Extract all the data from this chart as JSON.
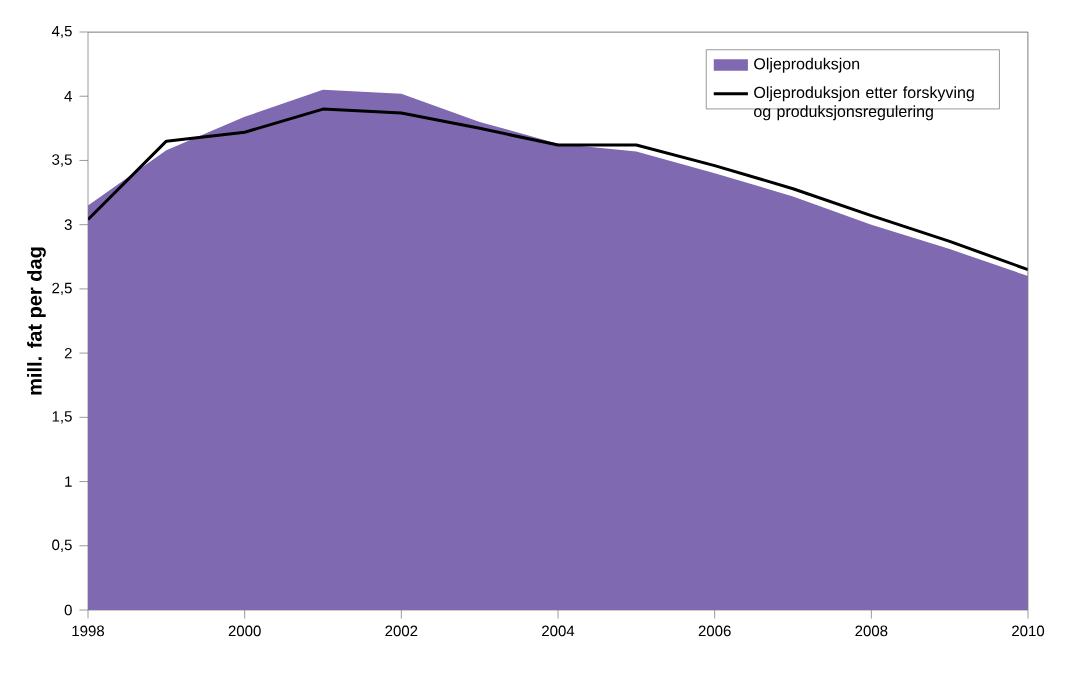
{
  "chart_data": {
    "type": "area",
    "ylabel": "mill. fat  per dag",
    "x": [
      1998,
      1999,
      2000,
      2001,
      2002,
      2003,
      2004,
      2005,
      2006,
      2007,
      2008,
      2009,
      2010
    ],
    "series": [
      {
        "name": "Oljeproduksjon",
        "color": "#7f69b0",
        "values": [
          3.15,
          3.58,
          3.84,
          4.05,
          4.02,
          3.8,
          3.63,
          3.57,
          3.4,
          3.22,
          3.0,
          2.81,
          2.6
        ]
      },
      {
        "name": "Oljeproduksjon etter forskyving og produksjonsregulering",
        "type": "line",
        "color": "#000000",
        "values": [
          3.04,
          3.65,
          3.72,
          3.9,
          3.87,
          3.75,
          3.62,
          3.62,
          3.46,
          3.28,
          3.07,
          2.87,
          2.65
        ]
      }
    ],
    "xlim": [
      1998,
      2010
    ],
    "xticks": [
      1998,
      2000,
      2002,
      2004,
      2006,
      2008,
      2010
    ],
    "ylim": [
      0,
      4.5
    ],
    "yticks": [
      0,
      {
        "value": 0.5,
        "label": "0,5"
      },
      1,
      {
        "value": 1.5,
        "label": "1,5"
      },
      2,
      {
        "value": 2.5,
        "label": "2,5"
      },
      3,
      {
        "value": 3.5,
        "label": "3,5"
      },
      4,
      {
        "value": 4.5,
        "label": "4,5"
      }
    ],
    "grid": false,
    "legend": "top right"
  }
}
